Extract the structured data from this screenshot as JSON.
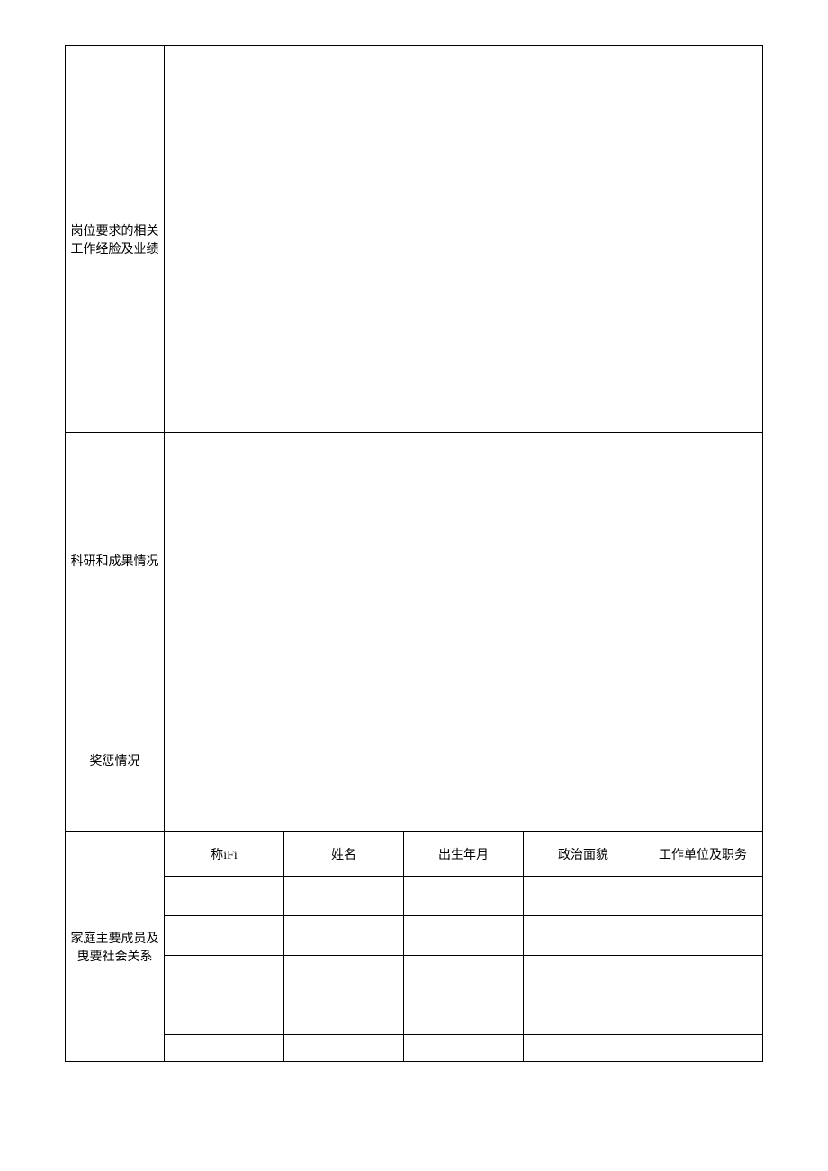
{
  "sections": {
    "work_experience_label": "岗位要求的相关工作经脸及业绩",
    "research_label": "科研和成果情况",
    "rewards_label": "奖惩情况",
    "family_label": "家庭主要成员及曳要社会关系"
  },
  "family": {
    "headers": {
      "relation": "称iFi",
      "name": "姓名",
      "birth": "出生年月",
      "political": "政治面貌",
      "work": "工作单位及职务"
    },
    "rows": [
      {
        "relation": "",
        "name": "",
        "birth": "",
        "political": "",
        "work": ""
      },
      {
        "relation": "",
        "name": "",
        "birth": "",
        "political": "",
        "work": ""
      },
      {
        "relation": "",
        "name": "",
        "birth": "",
        "political": "",
        "work": ""
      },
      {
        "relation": "",
        "name": "",
        "birth": "",
        "political": "",
        "work": ""
      },
      {
        "relation": "",
        "name": "",
        "birth": "",
        "political": "",
        "work": ""
      }
    ]
  },
  "styling": {
    "border_color": "#000000",
    "background_color": "#ffffff",
    "text_color": "#000000",
    "font_size": 14,
    "font_family": "SimSun",
    "label_col_width": 110,
    "family_col_widths": {
      "relation": 73,
      "name": 73,
      "birth": 85,
      "political": 108
    },
    "row_heights": {
      "large": 430,
      "medium": 285,
      "small": 158,
      "family_header": 50,
      "family_data": 44,
      "family_last": 30
    }
  }
}
